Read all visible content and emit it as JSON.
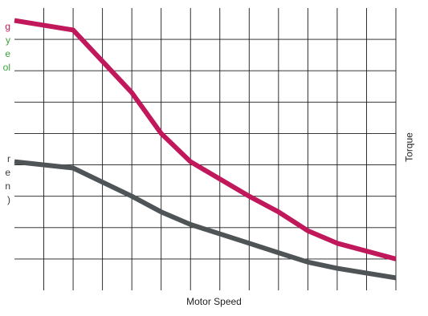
{
  "chart_data": {
    "type": "line",
    "title": "",
    "xlabel": "Motor Speed",
    "ylabel": "Torque",
    "xlim": [
      0,
      13
    ],
    "ylim": [
      0,
      9
    ],
    "grid": true,
    "x_ticks": [
      0,
      1,
      2,
      3,
      4,
      5,
      6,
      7,
      8,
      9,
      10,
      11,
      12,
      13
    ],
    "series": [
      {
        "color": "#c0185a",
        "points": [
          [
            0,
            8.6
          ],
          [
            2,
            8.3
          ],
          [
            4,
            6.3
          ],
          [
            5,
            5.0
          ],
          [
            6,
            4.1
          ],
          [
            8,
            3.0
          ],
          [
            9,
            2.5
          ],
          [
            10,
            1.9
          ],
          [
            11,
            1.5
          ],
          [
            13,
            1.0
          ]
        ]
      },
      {
        "color": "#4f5457",
        "points": [
          [
            0,
            4.1
          ],
          [
            2,
            3.9
          ],
          [
            4,
            3.0
          ],
          [
            5,
            2.5
          ],
          [
            6,
            2.1
          ],
          [
            8,
            1.5
          ],
          [
            9,
            1.2
          ],
          [
            10,
            0.9
          ],
          [
            11,
            0.7
          ],
          [
            13,
            0.4
          ]
        ]
      }
    ]
  },
  "annotations": {
    "top": [
      "g",
      "y",
      "e",
      "ol"
    ],
    "bottom": [
      "r",
      "e",
      "n",
      ")"
    ]
  },
  "colors": {
    "grid": "#1a1a1a",
    "annotation_accent_red": "#c2185b",
    "annotation_accent_green": "#3aa53a"
  }
}
